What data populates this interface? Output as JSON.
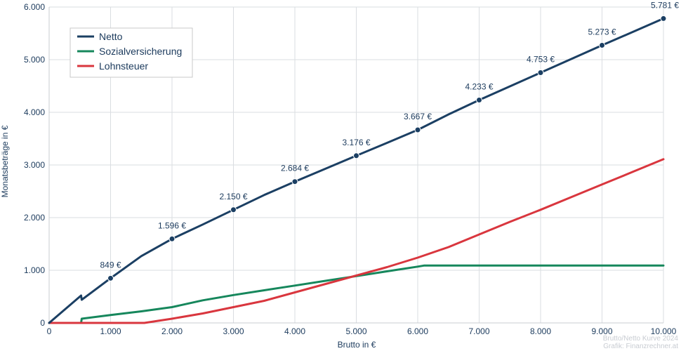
{
  "chart_data": {
    "type": "line",
    "title": "",
    "xlabel": "Brutto in €",
    "ylabel": "Monatsbeträge in €",
    "xlim": [
      0,
      10000
    ],
    "ylim": [
      0,
      6000
    ],
    "x_ticks": [
      0,
      1000,
      2000,
      3000,
      4000,
      5000,
      6000,
      7000,
      8000,
      9000,
      10000
    ],
    "x_tick_labels": [
      "0",
      "1.000",
      "2.000",
      "3.000",
      "4.000",
      "5.000",
      "6.000",
      "7.000",
      "8.000",
      "9.000",
      "10.000"
    ],
    "y_ticks": [
      0,
      1000,
      2000,
      3000,
      4000,
      5000,
      6000
    ],
    "y_tick_labels": [
      "0",
      "1.000",
      "2.000",
      "3.000",
      "4.000",
      "5.000",
      "6.000"
    ],
    "grid": true,
    "legend_position": "top-left",
    "series": [
      {
        "name": "Netto",
        "color": "#1b3f63",
        "x": [
          0,
          520,
          530,
          1000,
          1500,
          2000,
          2500,
          3000,
          3500,
          4000,
          4500,
          5000,
          5500,
          6000,
          6500,
          7000,
          7500,
          8000,
          8500,
          9000,
          9500,
          10000
        ],
        "values": [
          0,
          520,
          440,
          849,
          1270,
          1596,
          1870,
          2150,
          2430,
          2684,
          2930,
          3176,
          3420,
          3667,
          3960,
          4233,
          4493,
          4753,
          5013,
          5273,
          5527,
          5781
        ]
      },
      {
        "name": "Sozialversicherung",
        "color": "#16875c",
        "x": [
          0,
          520,
          530,
          1000,
          1500,
          2000,
          2500,
          3000,
          3500,
          4000,
          4500,
          5000,
          5500,
          6000,
          6100,
          7000,
          8000,
          9000,
          10000
        ],
        "values": [
          0,
          0,
          80,
          150,
          220,
          300,
          430,
          530,
          620,
          710,
          800,
          890,
          980,
          1070,
          1090,
          1090,
          1090,
          1090,
          1090
        ]
      },
      {
        "name": "Lohnsteuer",
        "color": "#d9363e",
        "x": [
          0,
          1550,
          2000,
          2500,
          3000,
          3500,
          4000,
          4500,
          5000,
          5500,
          6000,
          6500,
          7000,
          7500,
          8000,
          8500,
          9000,
          9500,
          10000
        ],
        "values": [
          0,
          0,
          80,
          180,
          300,
          420,
          580,
          740,
          900,
          1060,
          1240,
          1440,
          1680,
          1920,
          2150,
          2390,
          2630,
          2870,
          3110
        ]
      }
    ],
    "point_labels": {
      "series": "Netto",
      "x": [
        1000,
        2000,
        3000,
        4000,
        5000,
        6000,
        7000,
        8000,
        9000,
        10000
      ],
      "y": [
        849,
        1596,
        2150,
        2684,
        3176,
        3667,
        4233,
        4753,
        5273,
        5781
      ],
      "labels": [
        "849 €",
        "1.596 €",
        "2.150 €",
        "2.684 €",
        "3.176 €",
        "3.667 €",
        "4.233 €",
        "4.753 €",
        "5.273 €",
        "5.781 €"
      ]
    },
    "credits": [
      "Brutto/Netto Kurve 2024",
      "Grafik: Finanzrechner.at"
    ]
  }
}
